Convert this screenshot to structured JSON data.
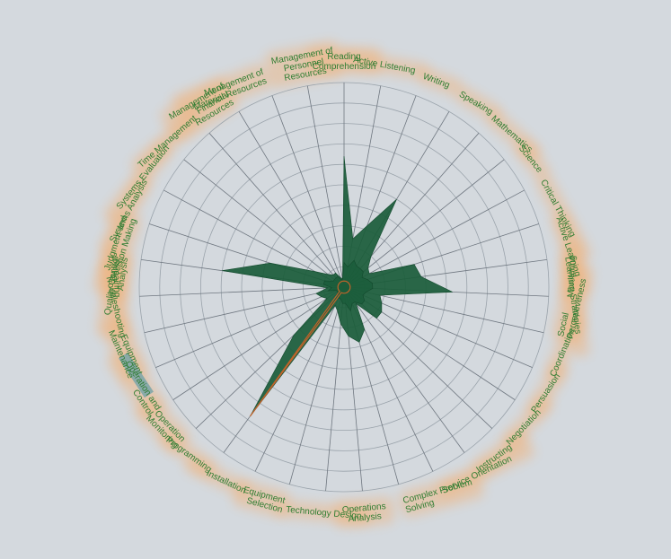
{
  "chart_data": {
    "type": "radar",
    "title": "",
    "axes": [
      "Reading Comprehension",
      "Active Listening",
      "Writing",
      "Speaking",
      "Mathematics",
      "Science",
      "Critical Thinking",
      "Active Learning",
      "Learning Strategies",
      "Monitoring",
      "Social Perceptiveness",
      "Coordination",
      "Persuasion",
      "Negotiation",
      "Instructing",
      "Service Orientation",
      "Complex Problem Solving",
      "Operations Analysis",
      "Technology Design",
      "Equipment Selection",
      "Installation",
      "Programming",
      "Operation Monitoring",
      "Operation and Control",
      "Equipment Maintenance",
      "Troubleshooting",
      "Repairing",
      "Quality Control Analysis",
      "Judgment and Decision Making",
      "Systems Analysis",
      "Systems Evaluation",
      "Time Management",
      "Management of Financial Resources",
      "Management of Material Resources",
      "Management of Personnel Resources"
    ],
    "axis_label_lines": [
      [
        "Reading",
        "Comprehension"
      ],
      [
        "Active Listening"
      ],
      [
        "Writing"
      ],
      [
        "Speaking"
      ],
      [
        "Mathematics"
      ],
      [
        "Science"
      ],
      [
        "Critical Thinking"
      ],
      [
        "Active Learning"
      ],
      [
        "Learning Strategies"
      ],
      [
        "Monitoring"
      ],
      [
        "Social",
        "Perceptiveness"
      ],
      [
        "Coordination"
      ],
      [
        "Persuasion"
      ],
      [
        "Negotiation"
      ],
      [
        "Instructing"
      ],
      [
        "Service Orientation"
      ],
      [
        "Complex Problem",
        "Solving"
      ],
      [
        "Operations",
        "Analysis"
      ],
      [
        "Technology Design"
      ],
      [
        "Equipment",
        "Selection"
      ],
      [
        "Installation"
      ],
      [
        "Programming"
      ],
      [
        "Operation",
        "Monitoring"
      ],
      [
        "Operation and",
        "Control"
      ],
      [
        "Equipment",
        "Maintenance"
      ],
      [
        "Troubleshooting"
      ],
      [
        "Repairing"
      ],
      [
        "Quality Control",
        "Analysis"
      ],
      [
        "Judgment and",
        "Decision Making"
      ],
      [
        "Systems Analysis"
      ],
      [
        "Systems Evaluation"
      ],
      [
        "Time Management"
      ],
      [
        "Management of",
        "Financial",
        "Resources"
      ],
      [
        "Management of",
        "Material Resources"
      ],
      [
        "Management of",
        "Personnel",
        "Resources"
      ]
    ],
    "rlim": [
      0,
      100
    ],
    "grid_rings": 10,
    "series": [
      {
        "values": [
          64,
          24,
          32,
          50,
          20,
          15,
          14,
          36,
          38,
          53,
          18,
          20,
          22,
          22,
          10,
          23,
          28,
          24,
          18,
          12,
          10,
          78,
          34,
          10,
          12,
          14,
          8,
          60,
          38,
          16,
          10,
          8,
          8,
          5,
          4
        ],
        "color": "#1a5c3a"
      },
      {
        "values": [
          12,
          10,
          14,
          12,
          12,
          12,
          10,
          12,
          14,
          14,
          11,
          10,
          12,
          12,
          9,
          9,
          12,
          8,
          8,
          6,
          6,
          4,
          4,
          4,
          4,
          8,
          6,
          10,
          10,
          6,
          6,
          6,
          6,
          4,
          4
        ],
        "color": "#1a5c3a"
      },
      {
        "values": [
          3,
          3,
          3,
          3,
          3,
          3,
          3,
          3,
          3,
          3,
          3,
          3,
          3,
          3,
          3,
          3,
          3,
          3,
          3,
          3,
          3,
          78,
          3,
          3,
          3,
          3,
          3,
          3,
          3,
          3,
          3,
          3,
          3,
          3,
          3
        ],
        "color": "#c0632a"
      }
    ],
    "highlighted_label": "Operation",
    "colors": {
      "background": "#d4d9de",
      "label": "#2f7d32",
      "label_glow": "#f0b27a",
      "grid": "#9aa3ab",
      "spoke": "#6f7780",
      "fill": "#1a5c3a",
      "accent_line": "#c0632a",
      "highlight_box": "#7fa6a8"
    }
  }
}
